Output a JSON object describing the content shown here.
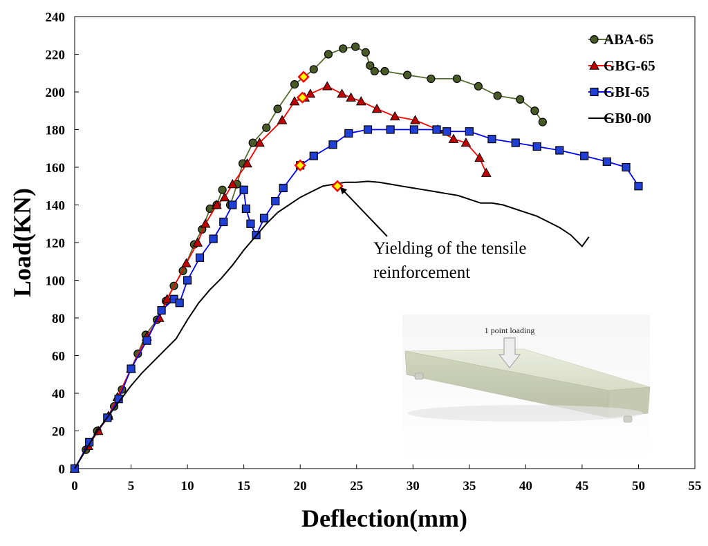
{
  "chart_data": {
    "type": "line",
    "title": "",
    "xlabel": "Deflection(mm)",
    "ylabel": "Load(KN)",
    "xlim": [
      0,
      55
    ],
    "ylim": [
      0,
      240
    ],
    "xticks": [
      0,
      5,
      10,
      15,
      20,
      25,
      30,
      35,
      40,
      45,
      50,
      55
    ],
    "yticks": [
      0,
      20,
      40,
      60,
      80,
      100,
      120,
      140,
      160,
      180,
      200,
      220,
      240
    ],
    "grid": false,
    "legend_position": "top-right",
    "series": [
      {
        "name": "ABA-65",
        "color": "#556b2f",
        "marker": "circle",
        "marker_fill": "#4a5a26",
        "x": [
          0,
          1,
          2,
          3,
          3.5,
          4.2,
          5,
          5.6,
          6.3,
          7.3,
          8.1,
          8.8,
          9.6,
          10.6,
          11.3,
          12,
          12.6,
          13.1,
          13.8,
          14.4,
          14.9,
          15.8,
          17,
          18,
          19.5,
          21.2,
          22.5,
          23.8,
          24.9,
          25.8,
          26.2,
          26.6,
          27.5,
          29.5,
          31.6,
          33.9,
          35.8,
          37.5,
          39.5,
          40.8,
          41.5
        ],
        "y": [
          0,
          10,
          20,
          27,
          33,
          42,
          53,
          61,
          71,
          79,
          89,
          97,
          105,
          119,
          127,
          138,
          140,
          148,
          140,
          151,
          162,
          173,
          181,
          191,
          204,
          212,
          220,
          223,
          224,
          221,
          214,
          211,
          211,
          209,
          207,
          207,
          203,
          198,
          196,
          190,
          184
        ]
      },
      {
        "name": "GBG-65",
        "color": "#ff0000",
        "marker": "triangle",
        "marker_fill": "#c00000",
        "x": [
          0,
          1.2,
          2.1,
          3,
          3.8,
          5,
          6.4,
          7.5,
          8.2,
          9.9,
          10.9,
          11.6,
          12.6,
          13.3,
          14,
          15.3,
          16.4,
          18.4,
          19.5,
          20.4,
          20.9,
          22.4,
          23.7,
          24.5,
          25.4,
          26.8,
          28.4,
          30.2,
          32.2,
          33.6,
          34.7,
          35.9,
          36.5
        ],
        "y": [
          0,
          12,
          20,
          28,
          38,
          53,
          70,
          80,
          90,
          109,
          120,
          130,
          140,
          144,
          151,
          162,
          173,
          185,
          195,
          197,
          199,
          203,
          199,
          197,
          195,
          191,
          187,
          185,
          180,
          175,
          173,
          165,
          157
        ]
      },
      {
        "name": "GBI-65",
        "color": "#0000ff",
        "marker": "square",
        "marker_fill": "#1f3fd6",
        "x": [
          0,
          1.3,
          2.9,
          3.9,
          5,
          6.4,
          7.7,
          8.8,
          9.3,
          10,
          11.1,
          12.3,
          13.2,
          14,
          15,
          15.2,
          15.6,
          16.1,
          16.8,
          17.8,
          18.5,
          20,
          21.2,
          22.9,
          24.3,
          26,
          28,
          30.1,
          32.1,
          33,
          35,
          37,
          39.1,
          41,
          43,
          45.2,
          47.2,
          48.9,
          50
        ],
        "y": [
          0,
          14,
          27,
          37,
          53,
          68,
          84,
          90,
          88,
          100,
          112,
          122,
          131,
          140,
          148,
          138,
          130,
          124,
          133,
          142,
          149,
          161,
          166,
          172,
          178,
          180,
          180,
          180,
          180,
          179,
          179,
          175,
          173,
          171,
          169,
          166,
          163,
          160,
          150
        ]
      },
      {
        "name": "GB0-00",
        "color": "#000000",
        "marker": "none",
        "x": [
          0,
          1,
          2,
          3,
          4,
          5,
          6,
          7,
          8,
          9,
          10,
          11,
          12,
          13,
          14,
          15,
          16,
          17,
          18,
          19,
          20,
          21,
          22,
          23,
          24,
          25,
          26,
          27,
          28,
          29,
          30,
          31,
          32,
          33,
          34,
          35,
          36,
          37,
          38,
          39,
          40,
          41,
          42,
          43,
          44,
          45,
          45.6
        ],
        "y": [
          0,
          10,
          20,
          28,
          36,
          44,
          51,
          57,
          63,
          69,
          79,
          88,
          95,
          101,
          108,
          116,
          123,
          130,
          136,
          140,
          144,
          147,
          150,
          151,
          152,
          152,
          152.5,
          152,
          151,
          150,
          149,
          148,
          147,
          146,
          145,
          143,
          141,
          141,
          140,
          138,
          136,
          134,
          131,
          128,
          124,
          118,
          123
        ]
      }
    ],
    "yield_points": {
      "marker": "diamond",
      "fill": "#ffff00",
      "edge": "#ff0000",
      "points": [
        [
          20.3,
          208
        ],
        [
          20.2,
          197
        ],
        [
          20,
          161
        ],
        [
          23.3,
          150
        ]
      ]
    },
    "annotation": {
      "line1": "Yielding of the tensile",
      "line2": "reinforcement",
      "target": [
        23.3,
        150
      ]
    },
    "inset": {
      "label": "1 point loading",
      "image": "beam-specimen-illustration"
    }
  }
}
